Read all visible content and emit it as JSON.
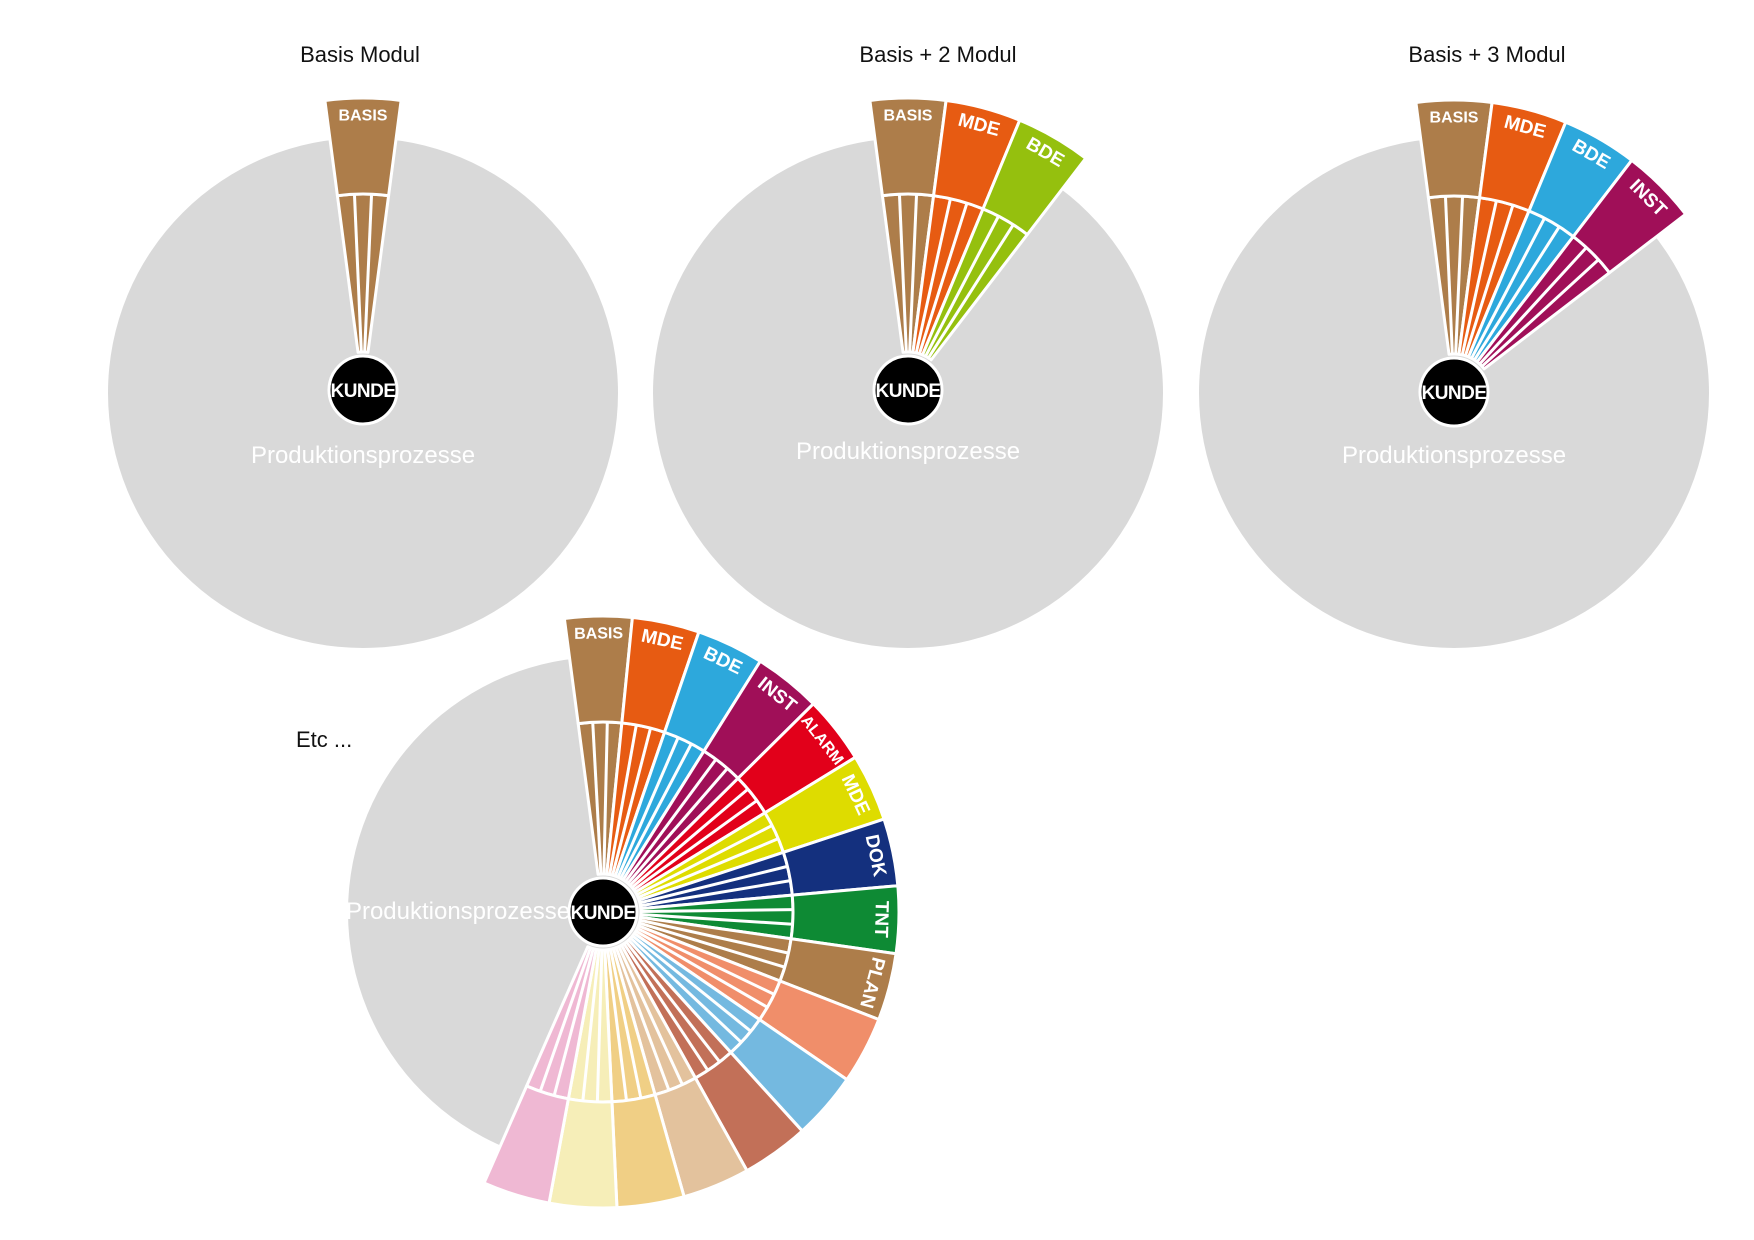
{
  "colors": {
    "background_circle": "#d9d9d9",
    "hub": "#000000",
    "divider": "#ffffff",
    "label": "#ffffff"
  },
  "diagrams": [
    {
      "title": "Basis Modul",
      "center_label": "KUNDE",
      "background_label": "Produktionsprozesse",
      "modules": [
        {
          "label": "BASIS",
          "color": "#ad7d4a"
        }
      ]
    },
    {
      "title": "Basis + 2 Modul",
      "center_label": "KUNDE",
      "background_label": "Produktionsprozesse",
      "modules": [
        {
          "label": "BASIS",
          "color": "#ad7d4a"
        },
        {
          "label": "MDE",
          "color": "#e75b12"
        },
        {
          "label": "BDE",
          "color": "#95c00e"
        }
      ]
    },
    {
      "title": "Basis + 3 Modul",
      "center_label": "KUNDE",
      "background_label": "Produktionsprozesse",
      "modules": [
        {
          "label": "BASIS",
          "color": "#ad7d4a"
        },
        {
          "label": "MDE",
          "color": "#e75b12"
        },
        {
          "label": "BDE",
          "color": "#2da8dc"
        },
        {
          "label": "INST",
          "color": "#a00f58"
        }
      ]
    },
    {
      "title": "Etc ...",
      "center_label": "KUNDE",
      "background_label": "Produktionsprozesse",
      "modules": [
        {
          "label": "BASIS",
          "color": "#ad7d4a"
        },
        {
          "label": "MDE",
          "color": "#e75b12"
        },
        {
          "label": "BDE",
          "color": "#2da8dc"
        },
        {
          "label": "INST",
          "color": "#a00f58"
        },
        {
          "label": "ALARM",
          "color": "#e2001a"
        },
        {
          "label": "MDE",
          "color": "#dedc00"
        },
        {
          "label": "DOK",
          "color": "#14307e"
        },
        {
          "label": "TNT",
          "color": "#0e8a34"
        },
        {
          "label": "PLAN",
          "color": "#ad7d4a"
        },
        {
          "label": "",
          "color": "#f08e6a"
        },
        {
          "label": "",
          "color": "#74b9e0"
        },
        {
          "label": "",
          "color": "#c27058"
        },
        {
          "label": "",
          "color": "#e3c29d"
        },
        {
          "label": "",
          "color": "#f0cf85"
        },
        {
          "label": "",
          "color": "#f6eeb8"
        },
        {
          "label": "",
          "color": "#efb8d3"
        }
      ]
    }
  ]
}
